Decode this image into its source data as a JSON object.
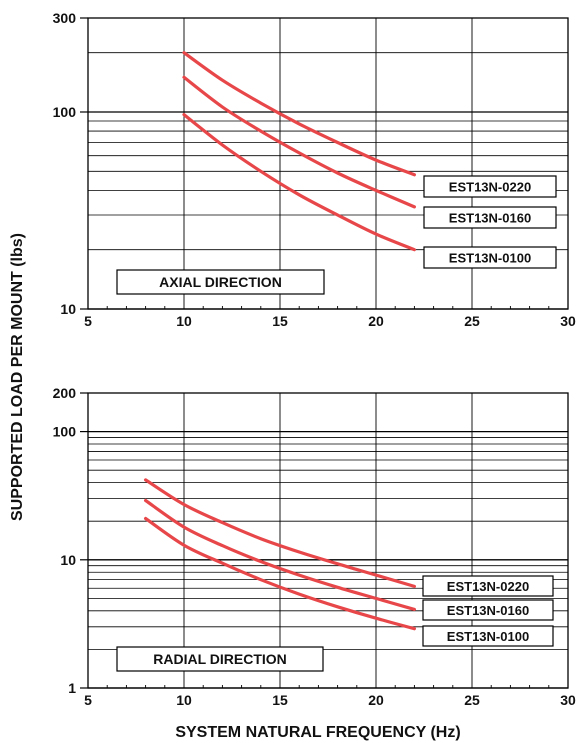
{
  "figure": {
    "ylabel": "SUPPORTED LOAD PER MOUNT (lbs)",
    "xlabel": "SYSTEM NATURAL FREQUENCY (Hz)"
  },
  "colors": {
    "curve": "#e8474a",
    "grid": "#000000",
    "text": "#111111"
  },
  "chart_data": [
    {
      "type": "line",
      "direction_label": "AXIAL DIRECTION",
      "x_scale": "linear",
      "y_scale": "log",
      "xlim": [
        5,
        30
      ],
      "ylim": [
        10,
        300
      ],
      "x_ticks": [
        "5",
        "10",
        "15",
        "20",
        "25",
        "30"
      ],
      "y_ticks": [
        "10",
        "100",
        "300"
      ],
      "grid": true,
      "series": [
        {
          "name": "EST13N-0220",
          "x": [
            10,
            12,
            14,
            16,
            18,
            20,
            22
          ],
          "values": [
            200,
            145,
            111,
            87,
            70,
            57,
            48
          ]
        },
        {
          "name": "EST13N-0160",
          "x": [
            10,
            12,
            14,
            16,
            18,
            20,
            22
          ],
          "values": [
            150,
            106,
            80,
            62,
            49,
            40,
            33
          ]
        },
        {
          "name": "EST13N-0100",
          "x": [
            10,
            12,
            14,
            16,
            18,
            20,
            22
          ],
          "values": [
            97,
            68,
            50,
            38,
            30,
            24,
            20
          ]
        }
      ]
    },
    {
      "type": "line",
      "direction_label": "RADIAL DIRECTION",
      "x_scale": "linear",
      "y_scale": "log",
      "xlim": [
        5,
        30
      ],
      "ylim": [
        1,
        200
      ],
      "x_ticks": [
        "5",
        "10",
        "15",
        "20",
        "25",
        "30"
      ],
      "y_ticks": [
        "1",
        "10",
        "100",
        "200"
      ],
      "grid": true,
      "series": [
        {
          "name": "EST13N-0220",
          "x": [
            8,
            10,
            12,
            14,
            16,
            18,
            20,
            22
          ],
          "values": [
            42,
            27,
            19.5,
            14.6,
            11.5,
            9.3,
            7.6,
            6.2
          ]
        },
        {
          "name": "EST13N-0160",
          "x": [
            8,
            10,
            12,
            14,
            16,
            18,
            20,
            22
          ],
          "values": [
            29,
            18,
            12.9,
            9.7,
            7.6,
            6.1,
            5.0,
            4.1
          ]
        },
        {
          "name": "EST13N-0100",
          "x": [
            8,
            10,
            12,
            14,
            16,
            18,
            20,
            22
          ],
          "values": [
            21,
            13,
            9.4,
            7.0,
            5.4,
            4.3,
            3.5,
            2.9
          ]
        }
      ]
    }
  ]
}
